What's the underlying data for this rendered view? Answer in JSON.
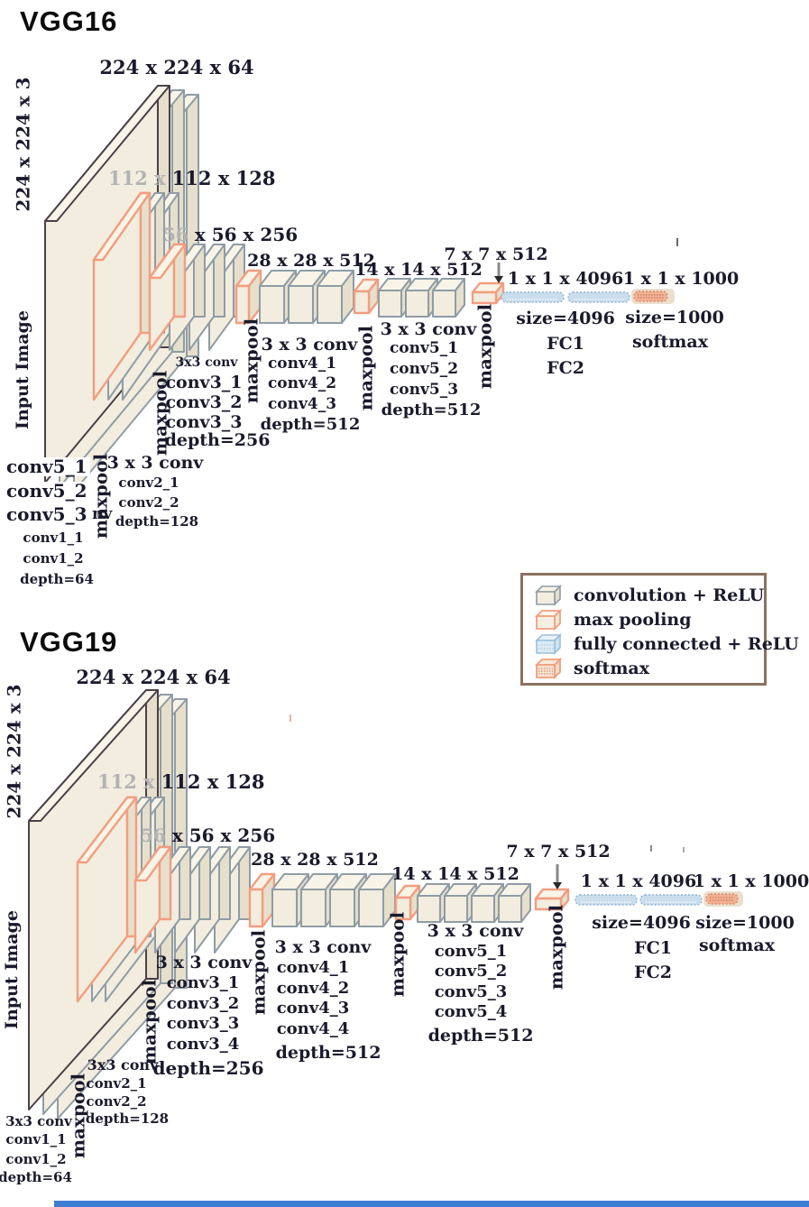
{
  "page": {
    "background": "#ffffff"
  },
  "colors": {
    "conv_stroke": "#8f9ca6",
    "maxpool_stroke": "#f29e80",
    "input_stroke": "#494049",
    "box_face": "#f2edde",
    "fc_fill": "#cadded",
    "softmax_fill": "#f2b095",
    "text": "#1a1a2c",
    "faded_text": "#b3b3b5",
    "legend_border": "#8b7160",
    "bottom_bar": "#3e7ed4"
  },
  "shared": {
    "maxpool": "maxpool"
  },
  "legend": {
    "items": [
      {
        "icon": "conv-box-icon",
        "label": "convolution + ReLU"
      },
      {
        "icon": "maxpool-box-icon",
        "label": "max pooling"
      },
      {
        "icon": "fc-box-icon",
        "label": "fully connected + ReLU"
      },
      {
        "icon": "softmax-box-icon",
        "label": "softmax"
      }
    ]
  },
  "vgg16": {
    "title": "VGG16",
    "input_size": "224 x 224 x 3",
    "input_image": "Input Image",
    "dims": {
      "conv1": "224 x 224 x 64",
      "conv2_gray": "112 x",
      "conv2_dark": "112 x 128",
      "conv3_gray": "56",
      "conv3_dark": "x 56 x 256",
      "conv4": "28 x 28 x 512",
      "conv5": "14 x 14 x 512",
      "pool5": "7 x 7 x 512",
      "fc": "1 x 1 x 4096",
      "out": "1 x 1 x 1000"
    },
    "blocks": {
      "conv1": {
        "header_remnant": "nv",
        "lines": [
          "conv1_1",
          "conv1_2",
          "depth=64"
        ]
      },
      "conv2": {
        "header": "3 x 3 conv",
        "lines": [
          "conv2_1",
          "conv2_2",
          "depth=128"
        ]
      },
      "conv3": {
        "header": "3x3 conv",
        "lines": [
          "conv3_1",
          "conv3_2",
          "conv3_3",
          "depth=256"
        ]
      },
      "conv4": {
        "header": "3 x 3 conv",
        "lines": [
          "conv4_1",
          "conv4_2",
          "conv4_3",
          "depth=512"
        ]
      },
      "conv5": {
        "header": "3 x 3 conv",
        "lines": [
          "conv5_1",
          "conv5_2",
          "conv5_3",
          "depth=512"
        ]
      }
    },
    "overlay_lines": [
      "conv5_1",
      "conv5_2",
      "conv5_3"
    ],
    "fc": {
      "size1": "size=4096",
      "fc1": "FC1",
      "fc2": "FC2",
      "size2": "size=1000",
      "softmax": "softmax"
    }
  },
  "vgg19": {
    "title": "VGG19",
    "input_size": "224 x 224 x 3",
    "input_image": "Input Image",
    "dims": {
      "conv1": "224 x 224 x 64",
      "conv2_gray": "112 x",
      "conv2_dark": "112 x 128",
      "conv3_gray": "56",
      "conv3_dark": "x 56 x 256",
      "conv4": "28 x 28 x 512",
      "conv5": "14 x 14 x 512",
      "pool5": "7 x 7 x 512",
      "fc": "1 x 1 x 4096",
      "out": "1 x 1 x 1000"
    },
    "blocks": {
      "conv1": {
        "header": "3x3 conv",
        "lines": [
          "conv1_1",
          "conv1_2",
          "depth=64"
        ]
      },
      "conv2": {
        "header": "3x3 conv",
        "lines": [
          "conv2_1",
          "conv2_2",
          "depth=128"
        ]
      },
      "conv3": {
        "header": "3 x 3 conv",
        "lines": [
          "conv3_1",
          "conv3_2",
          "conv3_3",
          "conv3_4",
          "depth=256"
        ]
      },
      "conv4": {
        "header": "3 x 3 conv",
        "lines": [
          "conv4_1",
          "conv4_2",
          "conv4_3",
          "conv4_4",
          "depth=512"
        ]
      },
      "conv5": {
        "header": "3 x 3 conv",
        "lines": [
          "conv5_1",
          "conv5_2",
          "conv5_3",
          "conv5_4",
          "depth=512"
        ]
      }
    },
    "fc": {
      "size1": "size=4096",
      "fc1": "FC1",
      "fc2": "FC2",
      "size2": "size=1000",
      "softmax": "softmax"
    }
  }
}
